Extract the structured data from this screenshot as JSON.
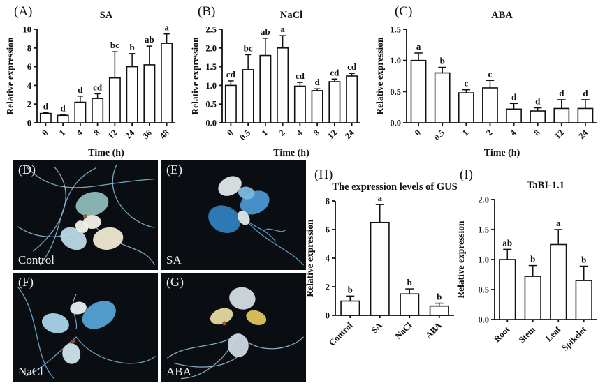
{
  "figure": {
    "background": "#ffffff",
    "text_color": "#111111",
    "bar_fill": "#ffffff",
    "bar_stroke": "#111111"
  },
  "photos": [
    {
      "letter": "(D)",
      "label": "Control",
      "palette": {
        "bg": "#0a0d12",
        "root": "#8cc3de",
        "seed": "#9a5a22",
        "leaves": [
          "#8fbcb9",
          "#bcd9e6",
          "#efe8d2",
          "#f2f2ea"
        ]
      }
    },
    {
      "letter": "(E)",
      "label": "SA",
      "palette": {
        "bg": "#0a0d12",
        "root": "#6fb0d8",
        "seed": "",
        "leaves": [
          "#2f7fc0",
          "#4b97cf",
          "#dfe8ea",
          "#7db9dd"
        ]
      }
    },
    {
      "letter": "(F)",
      "label": "NaCl",
      "palette": {
        "bg": "#0a0d12",
        "root": "#7db9dd",
        "seed": "#8a4a20",
        "leaves": [
          "#55a3d4",
          "#a8d4e8",
          "#cfe4ee",
          "#e8f0f2"
        ]
      }
    },
    {
      "letter": "(G)",
      "label": "ABA",
      "palette": {
        "bg": "#0a0d12",
        "root": "#9ccade",
        "seed": "#b0541e",
        "leaves": [
          "#d4dde3",
          "#e6d9a0",
          "#e2c45e",
          "#cdd8e0"
        ]
      }
    }
  ],
  "chart_data": [
    {
      "panel": "(A)",
      "type": "bar",
      "title": "SA",
      "ylabel": "Relative expression",
      "xlabel": "Time (h)",
      "categories": [
        "0",
        "1",
        "4",
        "8",
        "12",
        "24",
        "36",
        "48"
      ],
      "values": [
        1.0,
        0.8,
        2.2,
        2.6,
        4.8,
        6.0,
        6.2,
        8.5
      ],
      "errors": [
        0.1,
        0.06,
        0.65,
        0.5,
        2.8,
        1.4,
        2.0,
        1.0
      ],
      "sig_letters": [
        "d",
        "d",
        "d",
        "cd",
        "bc",
        "b",
        "ab",
        "a"
      ],
      "ylim": [
        0,
        10
      ],
      "ytick_labels": [
        "0",
        "2",
        "4",
        "6",
        "8",
        "10"
      ],
      "grid": false,
      "legend": "none"
    },
    {
      "panel": "(B)",
      "type": "bar",
      "title": "NaCl",
      "ylabel": "Relative expression",
      "xlabel": "Time (h)",
      "categories": [
        "0",
        "0.5",
        "1",
        "2",
        "4",
        "8",
        "12",
        "24"
      ],
      "values": [
        1.0,
        1.42,
        1.8,
        2.0,
        0.98,
        0.86,
        1.1,
        1.25
      ],
      "errors": [
        0.12,
        0.4,
        0.46,
        0.33,
        0.1,
        0.05,
        0.07,
        0.07
      ],
      "sig_letters": [
        "cd",
        "bc",
        "ab",
        "a",
        "cd",
        "d",
        "cd",
        "cd"
      ],
      "ylim": [
        0,
        2.5
      ],
      "ytick_labels": [
        "0.0",
        "0.5",
        "1.0",
        "1.5",
        "2.0",
        "2.5"
      ],
      "grid": false,
      "legend": "none"
    },
    {
      "panel": "(C)",
      "type": "bar",
      "title": "ABA",
      "ylabel": "Relative expression",
      "xlabel": "Time (h)",
      "categories": [
        "0",
        "0.5",
        "1",
        "2",
        "4",
        "8",
        "12",
        "24"
      ],
      "values": [
        1.0,
        0.8,
        0.48,
        0.56,
        0.22,
        0.19,
        0.23,
        0.23
      ],
      "errors": [
        0.12,
        0.09,
        0.05,
        0.12,
        0.09,
        0.05,
        0.14,
        0.14
      ],
      "sig_letters": [
        "a",
        "b",
        "c",
        "c",
        "d",
        "d",
        "d",
        "d"
      ],
      "ylim": [
        0,
        1.5
      ],
      "ytick_labels": [
        "0.0",
        "0.5",
        "1.0",
        "1.5"
      ],
      "grid": false,
      "legend": "none"
    },
    {
      "panel": "(H)",
      "type": "bar",
      "title": "The  expression levels of GUS",
      "ylabel": "Relative expression",
      "xlabel": "",
      "categories": [
        "Control",
        "SA",
        "NaCl",
        "ABA"
      ],
      "values": [
        1.0,
        6.5,
        1.5,
        0.65
      ],
      "errors": [
        0.35,
        1.25,
        0.35,
        0.2
      ],
      "sig_letters": [
        "b",
        "a",
        "b",
        "b"
      ],
      "ylim": [
        0,
        8
      ],
      "ytick_labels": [
        "0",
        "2",
        "4",
        "6",
        "8"
      ],
      "grid": false,
      "legend": "none"
    },
    {
      "panel": "(I)",
      "type": "bar",
      "title": "TaBI-1.1",
      "ylabel": "Relative expression",
      "xlabel": "",
      "categories": [
        "Root",
        "Stem",
        "Leaf",
        "Spikelet"
      ],
      "values": [
        1.0,
        0.72,
        1.25,
        0.65
      ],
      "errors": [
        0.17,
        0.18,
        0.25,
        0.24
      ],
      "sig_letters": [
        "ab",
        "b",
        "a",
        "b"
      ],
      "ylim": [
        0,
        2.0
      ],
      "ytick_labels": [
        "0.0",
        "0.5",
        "1.0",
        "1.5",
        "2.0"
      ],
      "grid": false,
      "legend": "none"
    }
  ]
}
